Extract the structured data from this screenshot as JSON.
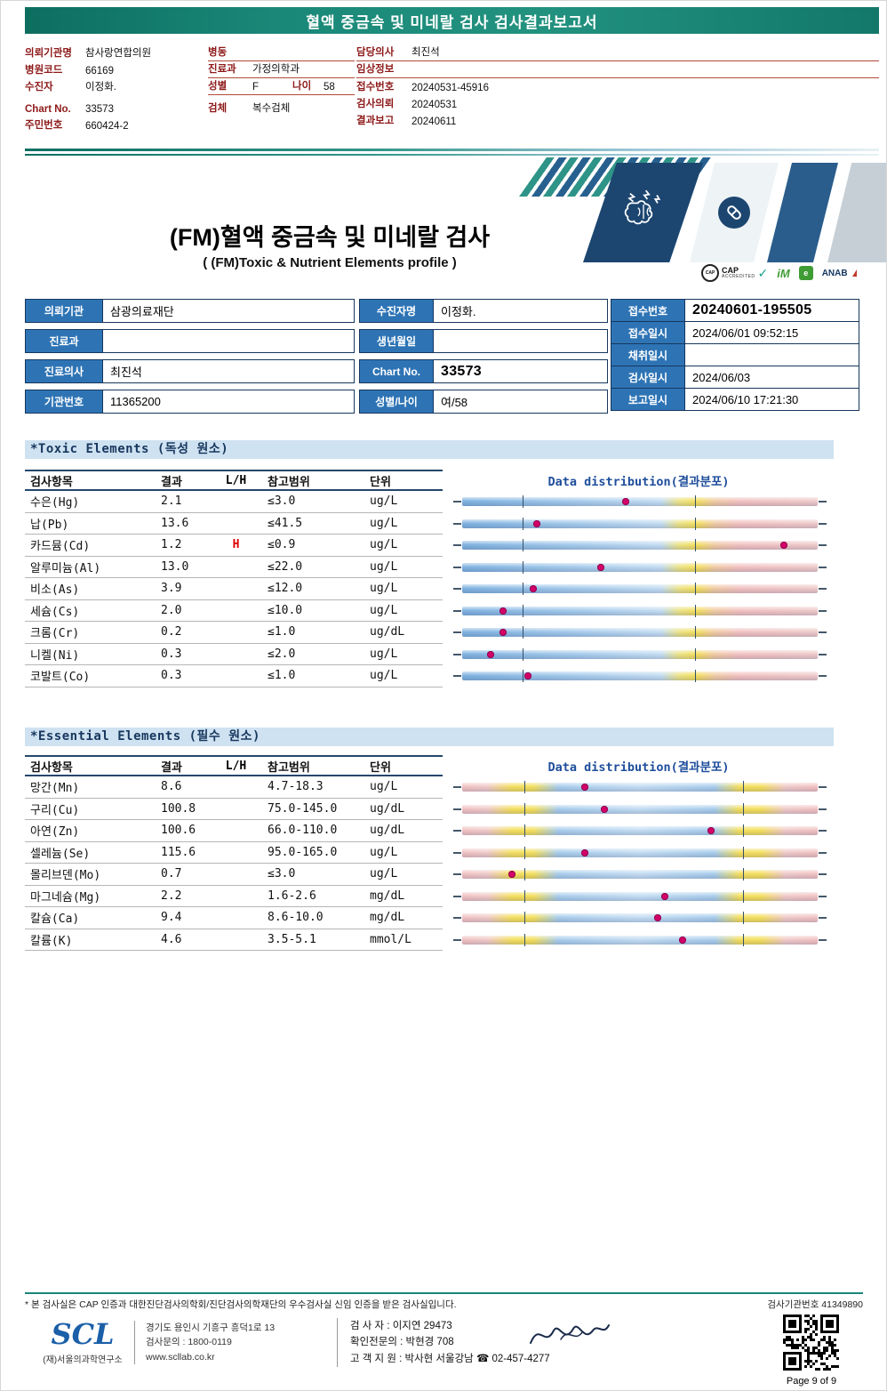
{
  "colors": {
    "header_teal": "#13786a",
    "label_maroon": "#8e1a1a",
    "table_label_blue": "#2e74b5",
    "navy_border": "#17375e",
    "section_bg": "#cfe2f1",
    "distribution_header_blue": "#1f4e9c",
    "result_dot": "#d4006a",
    "high_flag_red": "#e00000"
  },
  "report_header": {
    "title": "혈액 중금속 및 미네랄 검사 검사결과보고서",
    "left": [
      {
        "label": "의뢰기관명",
        "value": "참사랑연합의원"
      },
      {
        "label": "병원코드",
        "value": "66169"
      },
      {
        "label": "수진자",
        "value": "이정화."
      },
      {
        "label": "Chart No.",
        "value": "33573"
      },
      {
        "label": "주민번호",
        "value": "660424-2"
      }
    ],
    "middle": [
      {
        "label": "병동",
        "value": ""
      },
      {
        "label": "진료과",
        "value": "가정의학과"
      },
      {
        "label": "성별",
        "value": "F",
        "label2": "나이",
        "value2": "58"
      },
      {
        "label": "검체",
        "value": "복수검체"
      }
    ],
    "right": [
      {
        "label": "담당의사",
        "value": "최진석"
      },
      {
        "label": "임상정보",
        "value": ""
      },
      {
        "label": "접수번호",
        "value": "20240531-45916"
      },
      {
        "label": "검사의뢰",
        "value": "20240531"
      },
      {
        "label": "결과보고",
        "value": "20240611"
      }
    ]
  },
  "title_block": {
    "main": "(FM)혈액 중금속 및 미네랄 검사",
    "sub": "( (FM)Toxic & Nutrient Elements profile )",
    "logos": {
      "cap": "CAP",
      "cap_sub": "ACCREDITED",
      "lm": "iM",
      "era": "e",
      "anab": "ANAB"
    }
  },
  "info_table": {
    "rows_left": [
      {
        "label": "의뢰기관",
        "value": "삼광의료재단"
      },
      {
        "label": "진료과",
        "value": ""
      },
      {
        "label": "진료의사",
        "value": "최진석"
      },
      {
        "label": "기관번호",
        "value": "11365200"
      }
    ],
    "rows_mid": [
      {
        "label": "수진자명",
        "value": "이정화."
      },
      {
        "label": "생년월일",
        "value": ""
      },
      {
        "label": "Chart No.",
        "value": "33573"
      },
      {
        "label": "성별/나이",
        "value": "여/58"
      }
    ],
    "rows_right": [
      {
        "label": "접수번호",
        "value": "20240601-195505"
      },
      {
        "label": "접수일시",
        "value": "2024/06/01 09:52:15"
      },
      {
        "label": "채취일시",
        "value": ""
      },
      {
        "label": "검사일시",
        "value": "2024/06/03"
      },
      {
        "label": "보고일시",
        "value": "2024/06/10 17:21:30"
      }
    ]
  },
  "chart_data": [
    {
      "type": "table",
      "title": "*Toxic Elements (독성 원소)",
      "columns": [
        "검사항목",
        "결과",
        "L/H",
        "참고범위",
        "단위",
        "Data distribution(결과분포)"
      ],
      "bar_style": "toxic",
      "ticks": [
        17,
        65.5
      ],
      "rows": [
        {
          "item": "수은(Hg)",
          "result": "2.1",
          "flag": "",
          "range": "≤3.0",
          "unit": "ug/L",
          "dot_pct": 46
        },
        {
          "item": "납(Pb)",
          "result": "13.6",
          "flag": "",
          "range": "≤41.5",
          "unit": "ug/L",
          "dot_pct": 21
        },
        {
          "item": "카드뮴(Cd)",
          "result": "1.2",
          "flag": "H",
          "range": "≤0.9",
          "unit": "ug/L",
          "dot_pct": 90.5
        },
        {
          "item": "알루미늄(Al)",
          "result": "13.0",
          "flag": "",
          "range": "≤22.0",
          "unit": "ug/L",
          "dot_pct": 39
        },
        {
          "item": "비소(As)",
          "result": "3.9",
          "flag": "",
          "range": "≤12.0",
          "unit": "ug/L",
          "dot_pct": 20
        },
        {
          "item": "세슘(Cs)",
          "result": "2.0",
          "flag": "",
          "range": "≤10.0",
          "unit": "ug/L",
          "dot_pct": 11.5
        },
        {
          "item": "크롬(Cr)",
          "result": "0.2",
          "flag": "",
          "range": "≤1.0",
          "unit": "ug/dL",
          "dot_pct": 11.5
        },
        {
          "item": "니켈(Ni)",
          "result": "0.3",
          "flag": "",
          "range": "≤2.0",
          "unit": "ug/L",
          "dot_pct": 8
        },
        {
          "item": "코발트(Co)",
          "result": "0.3",
          "flag": "",
          "range": "≤1.0",
          "unit": "ug/L",
          "dot_pct": 18.5
        }
      ]
    },
    {
      "type": "table",
      "title": "*Essential Elements (필수 원소)",
      "columns": [
        "검사항목",
        "결과",
        "L/H",
        "참고범위",
        "단위",
        "Data distribution(결과분포)"
      ],
      "bar_style": "essential",
      "ticks": [
        17.5,
        79
      ],
      "rows": [
        {
          "item": "망간(Mn)",
          "result": "8.6",
          "flag": "",
          "range": "4.7-18.3",
          "unit": "ug/L",
          "dot_pct": 34.5
        },
        {
          "item": "구리(Cu)",
          "result": "100.8",
          "flag": "",
          "range": "75.0-145.0",
          "unit": "ug/dL",
          "dot_pct": 40
        },
        {
          "item": "아연(Zn)",
          "result": "100.6",
          "flag": "",
          "range": "66.0-110.0",
          "unit": "ug/dL",
          "dot_pct": 70
        },
        {
          "item": "셀레늄(Se)",
          "result": "115.6",
          "flag": "",
          "range": "95.0-165.0",
          "unit": "ug/L",
          "dot_pct": 34.5
        },
        {
          "item": "몰리브덴(Mo)",
          "result": "0.7",
          "flag": "",
          "range": "≤3.0",
          "unit": "ug/L",
          "dot_pct": 14
        },
        {
          "item": "마그네슘(Mg)",
          "result": "2.2",
          "flag": "",
          "range": "1.6-2.6",
          "unit": "mg/dL",
          "dot_pct": 57
        },
        {
          "item": "칼슘(Ca)",
          "result": "9.4",
          "flag": "",
          "range": "8.6-10.0",
          "unit": "mg/dL",
          "dot_pct": 55
        },
        {
          "item": "칼륨(K)",
          "result": "4.6",
          "flag": "",
          "range": "3.5-5.1",
          "unit": "mmol/L",
          "dot_pct": 62
        }
      ]
    }
  ],
  "footer": {
    "note": "* 본 검사실은 CAP 인증과 대한진단검사의학회/진단검사의학재단의 우수검사실 신임 인증을 받은 검사실입니다.",
    "lab_no": "검사기관번호 41349890",
    "logo": "SCL",
    "org": "(재)서울의과학연구소",
    "address": "경기도 용인시 기흥구 흥덕1로 13",
    "tel": "검사문의 : 1800-0119",
    "web": "www.scllab.co.kr",
    "examiner": "검 사 자 : 이지연 29473",
    "confirmer": "확인전문의 : 박현경 708",
    "support": "고 객 지 원 : 박사현 서울강남 ☎ 02-457-4277",
    "page": "Page 9 of 9"
  }
}
